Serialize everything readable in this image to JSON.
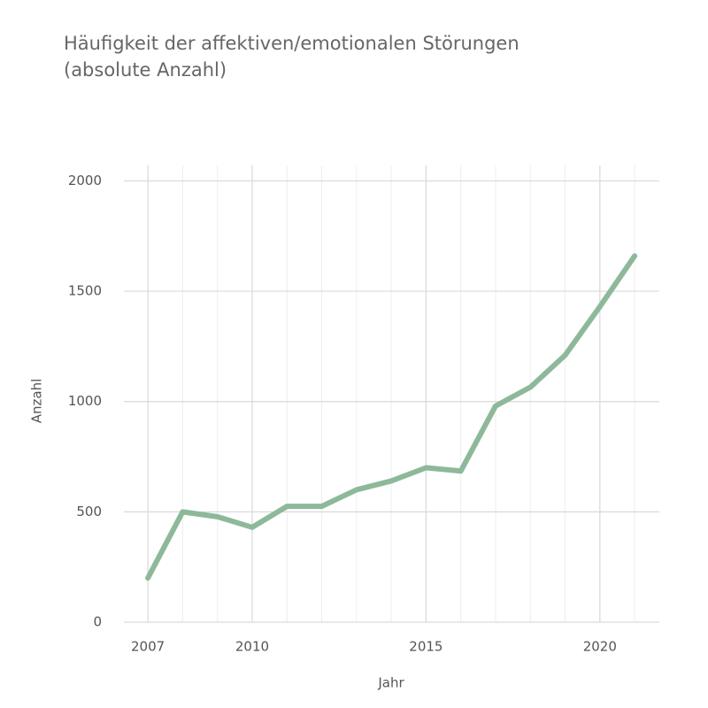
{
  "chart_data": {
    "type": "line",
    "title": [
      "Häufigkeit der affektiven/emotionalen Störungen",
      "(absolute Anzahl)"
    ],
    "x_label": "Jahr",
    "y_label": "Anzahl",
    "x": [
      2007,
      2008,
      2009,
      2010,
      2011,
      2012,
      2013,
      2014,
      2015,
      2016,
      2017,
      2018,
      2019,
      2020,
      2021
    ],
    "series": [
      {
        "name": "Anzahl",
        "color": "#8db99a",
        "values": [
          200,
          500,
          478,
          430,
          525,
          525,
          600,
          640,
          700,
          685,
          980,
          1065,
          1210,
          1430,
          1660
        ]
      }
    ],
    "xlim": [
      2006.31,
      2021.71
    ],
    "xticks": [
      2007,
      2010,
      2015,
      2020
    ],
    "ylim": [
      0,
      2070
    ],
    "yticks": [
      0,
      500,
      1000,
      1500,
      2000
    ],
    "grid": true
  }
}
